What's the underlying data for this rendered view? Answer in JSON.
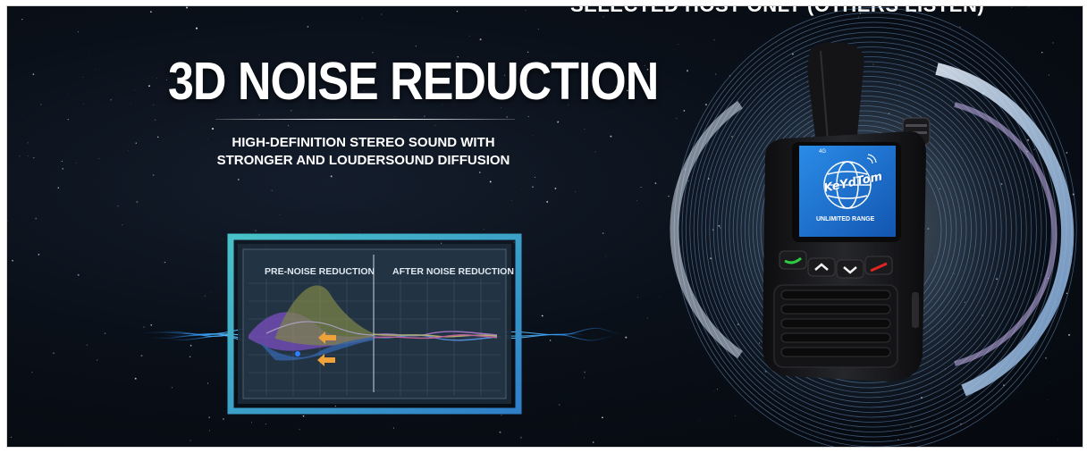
{
  "banner": {
    "top_caption": "SELECTED HOST ONLY (OTHERS LISTEN)",
    "title": "3D NOISE REDUCTION",
    "subtitle_lines": [
      "HIGH-DEFINITION STEREO SOUND WITH",
      "STRONGER AND LOUDERSOUND DIFFUSION"
    ]
  },
  "comparison_panel": {
    "left_label": "PRE-NOISE REDUCTION",
    "right_label": "AFTER NOISE REDUCTION",
    "arrow_icon": "arrow-left-icon"
  },
  "device": {
    "brand_logo": "KeYdTom",
    "screen_caption": "UNLIMITED RANGE",
    "network_indicator": "4G",
    "buttons": [
      "call-green-icon",
      "chevron-up-icon",
      "chevron-down-icon",
      "hangup-red-icon"
    ]
  },
  "colors": {
    "background": "#0a1019",
    "panel_border": "#36b3c4",
    "screen_blue": "#1e78d0",
    "arrow_orange": "#f0a23a",
    "call_green": "#2ecc40",
    "hangup_red": "#e02424"
  }
}
